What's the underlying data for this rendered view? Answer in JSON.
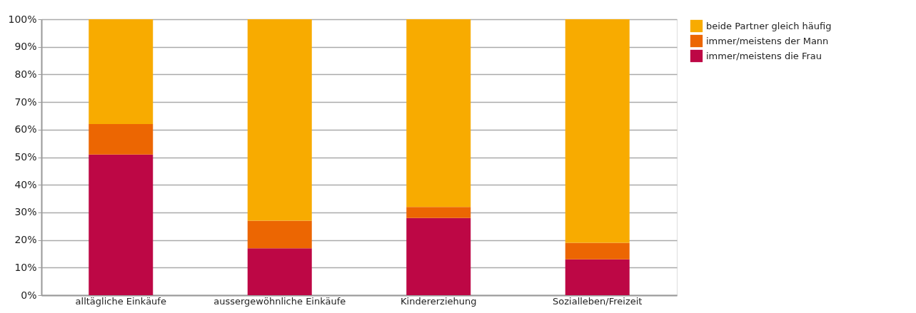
{
  "chart_data": {
    "type": "bar",
    "stacked": true,
    "categories": [
      "alltägliche Einkäufe",
      "aussergewöhnliche Einkäufe",
      "Kindererziehung",
      "Sozialleben/Freizeit"
    ],
    "series": [
      {
        "name": "immer/meistens die Frau",
        "color": "#bd0745",
        "values": [
          51,
          17,
          28,
          13
        ]
      },
      {
        "name": "immer/meistens der Mann",
        "color": "#ec6602",
        "values": [
          11,
          10,
          4,
          6
        ]
      },
      {
        "name": "beide Partner gleich häufig",
        "color": "#f8ab00",
        "values": [
          38,
          73,
          68,
          81
        ]
      }
    ],
    "ylim": [
      0,
      100
    ],
    "yticks": [
      {
        "value": 0,
        "label": "0%"
      },
      {
        "value": 10,
        "label": "10%"
      },
      {
        "value": 20,
        "label": "20%"
      },
      {
        "value": 30,
        "label": "30%"
      },
      {
        "value": 40,
        "label": "40%"
      },
      {
        "value": 50,
        "label": "50%"
      },
      {
        "value": 60,
        "label": "60%"
      },
      {
        "value": 70,
        "label": "70%"
      },
      {
        "value": 80,
        "label": "80%"
      },
      {
        "value": 90,
        "label": "90%"
      },
      {
        "value": 100,
        "label": "100%"
      }
    ],
    "grid": "y",
    "legend": "top right"
  }
}
